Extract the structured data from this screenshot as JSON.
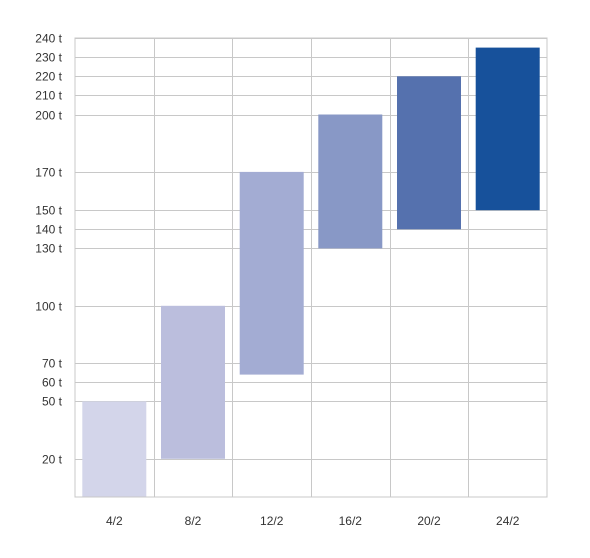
{
  "chart_data": {
    "type": "bar",
    "subtype": "floating-range",
    "title": "",
    "xlabel": "",
    "ylabel": "",
    "ylim": [
      0,
      240
    ],
    "y_tick_values": [
      20,
      50,
      60,
      70,
      100,
      130,
      140,
      150,
      170,
      200,
      210,
      220,
      230,
      240
    ],
    "y_tick_labels": [
      "20 t",
      "50 t",
      "60 t",
      "70 t",
      "100 t",
      "130 t",
      "140 t",
      "150 t",
      "170 t",
      "200 t",
      "210 t",
      "220 t",
      "230 t",
      "240 t"
    ],
    "categories": [
      "4/2",
      "8/2",
      "12/2",
      "16/2",
      "20/2",
      "24/2"
    ],
    "bars": [
      {
        "category": "4/2",
        "low": 0,
        "high": 50,
        "color": "#d3d5ea"
      },
      {
        "category": "8/2",
        "low": 20,
        "high": 100,
        "color": "#bbbedd"
      },
      {
        "category": "12/2",
        "low": 64,
        "high": 170,
        "color": "#a3acd3"
      },
      {
        "category": "16/2",
        "low": 130,
        "high": 200,
        "color": "#8898c6"
      },
      {
        "category": "20/2",
        "low": 140,
        "high": 220,
        "color": "#5571ae"
      },
      {
        "category": "24/2",
        "low": 150,
        "high": 235,
        "color": "#17519b"
      }
    ],
    "grid": true,
    "legend": "none"
  }
}
